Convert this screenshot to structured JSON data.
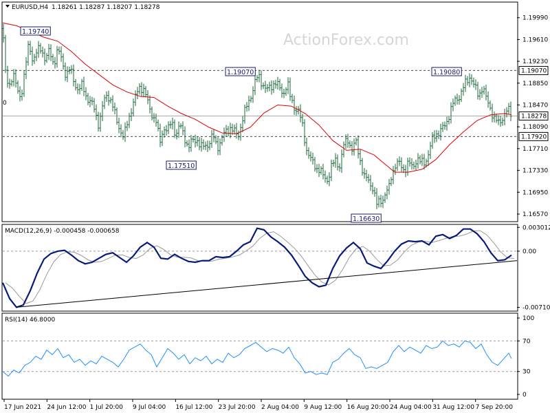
{
  "header": {
    "symbol": "EURUSD,H4",
    "ohlc": "1.18261 1.18287 1.18207 1.18278",
    "watermark": "ActionForex.com"
  },
  "chart_data": [
    {
      "type": "candlestick",
      "panel": "price",
      "ylim": [
        1.1645,
        1.2025
      ],
      "y_ticks": [
        "1.19990",
        "1.19610",
        "1.19230",
        "1.18850",
        "1.18470",
        "1.18090",
        "1.17710",
        "1.17330",
        "1.16950",
        "1.16570"
      ],
      "price_marker": {
        "label": "1.18278",
        "value": 1.18278
      },
      "levels": [
        {
          "label": "1.19070",
          "value": 1.1907,
          "style": "dashed"
        },
        {
          "label": "1.17920",
          "value": 1.1792,
          "style": "dashed"
        }
      ],
      "annotations": [
        {
          "label": "1.19740",
          "x": "24 Jun 2021",
          "value": 1.1974
        },
        {
          "label": "1.17510",
          "x": "16 Jul 2021",
          "value": 1.1751
        },
        {
          "label": "1.19070",
          "x": "30 Jul 2021",
          "value": 1.1907
        },
        {
          "label": "1.16630",
          "x": "20 Aug 2021",
          "value": 1.1663
        },
        {
          "label": "1.19080",
          "x": "2 Sep 2021",
          "value": 1.1908
        }
      ],
      "close_points": [
        [
          0,
          1.198
        ],
        [
          4,
          1.19
        ],
        [
          9,
          1.1882
        ],
        [
          15,
          1.1901
        ],
        [
          20,
          1.1875
        ],
        [
          26,
          1.1862
        ],
        [
          32,
          1.1902
        ],
        [
          38,
          1.1955
        ],
        [
          44,
          1.1925
        ],
        [
          50,
          1.1938
        ],
        [
          56,
          1.1948
        ],
        [
          62,
          1.1925
        ],
        [
          68,
          1.194
        ],
        [
          74,
          1.192
        ],
        [
          80,
          1.1942
        ],
        [
          86,
          1.1925
        ],
        [
          92,
          1.19
        ],
        [
          98,
          1.1908
        ],
        [
          104,
          1.1888
        ],
        [
          110,
          1.1872
        ],
        [
          116,
          1.188
        ],
        [
          122,
          1.1862
        ],
        [
          128,
          1.185
        ],
        [
          134,
          1.1838
        ],
        [
          140,
          1.1812
        ],
        [
          146,
          1.1848
        ],
        [
          152,
          1.1868
        ],
        [
          158,
          1.1852
        ],
        [
          164,
          1.1825
        ],
        [
          170,
          1.1808
        ],
        [
          176,
          1.1788
        ],
        [
          182,
          1.182
        ],
        [
          188,
          1.1845
        ],
        [
          194,
          1.1862
        ],
        [
          200,
          1.1882
        ],
        [
          206,
          1.1872
        ],
        [
          212,
          1.1845
        ],
        [
          218,
          1.183
        ],
        [
          224,
          1.1815
        ],
        [
          228,
          1.1778
        ],
        [
          234,
          1.181
        ],
        [
          240,
          1.18
        ],
        [
          246,
          1.182
        ],
        [
          252,
          1.1795
        ],
        [
          258,
          1.181
        ],
        [
          264,
          1.1795
        ],
        [
          270,
          1.177
        ],
        [
          276,
          1.1785
        ],
        [
          282,
          1.179
        ],
        [
          288,
          1.177
        ],
        [
          294,
          1.1778
        ],
        [
          300,
          1.178
        ],
        [
          306,
          1.1792
        ],
        [
          312,
          1.1775
        ],
        [
          318,
          1.1785
        ],
        [
          324,
          1.18
        ],
        [
          330,
          1.181
        ],
        [
          336,
          1.18
        ],
        [
          342,
          1.1792
        ],
        [
          348,
          1.182
        ],
        [
          354,
          1.184
        ],
        [
          360,
          1.1862
        ],
        [
          366,
          1.1882
        ],
        [
          372,
          1.1898
        ],
        [
          378,
          1.1885
        ],
        [
          384,
          1.187
        ],
        [
          390,
          1.188
        ],
        [
          396,
          1.1888
        ],
        [
          402,
          1.1875
        ],
        [
          408,
          1.1868
        ],
        [
          414,
          1.1885
        ],
        [
          418,
          1.186
        ],
        [
          424,
          1.1845
        ],
        [
          430,
          1.1835
        ],
        [
          436,
          1.181
        ],
        [
          442,
          1.177
        ],
        [
          448,
          1.175
        ],
        [
          454,
          1.1742
        ],
        [
          460,
          1.1735
        ],
        [
          466,
          1.1722
        ],
        [
          472,
          1.1718
        ],
        [
          478,
          1.1738
        ],
        [
          484,
          1.175
        ],
        [
          490,
          1.1742
        ],
        [
          496,
          1.1775
        ],
        [
          502,
          1.1788
        ],
        [
          508,
          1.177
        ],
        [
          514,
          1.178
        ],
        [
          520,
          1.1752
        ],
        [
          526,
          1.172
        ],
        [
          532,
          1.1715
        ],
        [
          538,
          1.1705
        ],
        [
          544,
          1.1672
        ],
        [
          550,
          1.1682
        ],
        [
          556,
          1.169
        ],
        [
          562,
          1.1702
        ],
        [
          566,
          1.173
        ],
        [
          572,
          1.1745
        ],
        [
          578,
          1.1742
        ],
        [
          584,
          1.1735
        ],
        [
          590,
          1.1745
        ],
        [
          596,
          1.1738
        ],
        [
          602,
          1.1755
        ],
        [
          608,
          1.1745
        ],
        [
          614,
          1.1748
        ],
        [
          620,
          1.1765
        ],
        [
          626,
          1.179
        ],
        [
          632,
          1.18
        ],
        [
          638,
          1.1802
        ],
        [
          644,
          1.1812
        ],
        [
          650,
          1.1835
        ],
        [
          656,
          1.185
        ],
        [
          662,
          1.186
        ],
        [
          668,
          1.1872
        ],
        [
          674,
          1.1885
        ],
        [
          680,
          1.19
        ],
        [
          686,
          1.1878
        ],
        [
          692,
          1.1862
        ],
        [
          698,
          1.1882
        ],
        [
          704,
          1.1852
        ],
        [
          710,
          1.184
        ],
        [
          716,
          1.1822
        ],
        [
          722,
          1.1812
        ],
        [
          728,
          1.183
        ],
        [
          734,
          1.1838
        ],
        [
          740,
          1.1828
        ]
      ],
      "ma_points": [
        [
          0,
          1.199
        ],
        [
          20,
          1.1985
        ],
        [
          40,
          1.1975
        ],
        [
          60,
          1.1965
        ],
        [
          80,
          1.1958
        ],
        [
          100,
          1.194
        ],
        [
          120,
          1.1918
        ],
        [
          140,
          1.19
        ],
        [
          160,
          1.1882
        ],
        [
          180,
          1.187
        ],
        [
          200,
          1.1862
        ],
        [
          220,
          1.186
        ],
        [
          240,
          1.1845
        ],
        [
          260,
          1.1832
        ],
        [
          280,
          1.1822
        ],
        [
          300,
          1.1808
        ],
        [
          320,
          1.1798
        ],
        [
          340,
          1.1797
        ],
        [
          360,
          1.1808
        ],
        [
          380,
          1.1833
        ],
        [
          400,
          1.1847
        ],
        [
          420,
          1.1845
        ],
        [
          440,
          1.1832
        ],
        [
          460,
          1.1812
        ],
        [
          480,
          1.1785
        ],
        [
          500,
          1.1768
        ],
        [
          520,
          1.177
        ],
        [
          540,
          1.176
        ],
        [
          560,
          1.174
        ],
        [
          570,
          1.173
        ],
        [
          590,
          1.173
        ],
        [
          610,
          1.1735
        ],
        [
          630,
          1.1752
        ],
        [
          650,
          1.1778
        ],
        [
          670,
          1.18
        ],
        [
          690,
          1.182
        ],
        [
          710,
          1.183
        ],
        [
          730,
          1.1832
        ],
        [
          740,
          1.183
        ]
      ]
    },
    {
      "type": "line",
      "panel": "macd",
      "title": "MACD(12,26,9) -0.000458 -0.000658",
      "ylim": [
        -0.0075,
        0.0033
      ],
      "y_ticks": [
        "0.003012",
        "0.00",
        "-0.007109"
      ],
      "macd_points": [
        [
          0,
          -0.004
        ],
        [
          10,
          -0.006
        ],
        [
          20,
          -0.0071
        ],
        [
          30,
          -0.0068
        ],
        [
          40,
          -0.005
        ],
        [
          50,
          -0.0028
        ],
        [
          60,
          -0.001
        ],
        [
          70,
          -0.0003
        ],
        [
          80,
          0.0
        ],
        [
          90,
          0.0001
        ],
        [
          100,
          -0.0005
        ],
        [
          110,
          -0.0012
        ],
        [
          120,
          -0.0016
        ],
        [
          130,
          -0.0014
        ],
        [
          140,
          -0.0009
        ],
        [
          150,
          -0.0004
        ],
        [
          160,
          -0.0002
        ],
        [
          170,
          -0.0008
        ],
        [
          180,
          -0.0014
        ],
        [
          190,
          -0.0006
        ],
        [
          200,
          0.0005
        ],
        [
          210,
          0.0011
        ],
        [
          220,
          0.0005
        ],
        [
          230,
          -0.0009
        ],
        [
          240,
          -0.001
        ],
        [
          250,
          -0.0004
        ],
        [
          260,
          -0.0009
        ],
        [
          270,
          -0.0013
        ],
        [
          280,
          -0.0014
        ],
        [
          290,
          -0.0012
        ],
        [
          300,
          -0.0012
        ],
        [
          310,
          -0.0007
        ],
        [
          320,
          -0.0008
        ],
        [
          330,
          -0.0007
        ],
        [
          340,
          0.0
        ],
        [
          350,
          0.0008
        ],
        [
          360,
          0.0012
        ],
        [
          370,
          0.0029
        ],
        [
          380,
          0.0027
        ],
        [
          390,
          0.0018
        ],
        [
          400,
          0.0012
        ],
        [
          410,
          0.0005
        ],
        [
          420,
          -0.0005
        ],
        [
          430,
          -0.0018
        ],
        [
          440,
          -0.0032
        ],
        [
          450,
          -0.004
        ],
        [
          460,
          -0.0045
        ],
        [
          470,
          -0.0043
        ],
        [
          480,
          -0.0022
        ],
        [
          490,
          -0.0006
        ],
        [
          500,
          0.0004
        ],
        [
          510,
          0.0011
        ],
        [
          520,
          0.0003
        ],
        [
          530,
          -0.0015
        ],
        [
          540,
          -0.0019
        ],
        [
          550,
          -0.0022
        ],
        [
          560,
          -0.0012
        ],
        [
          570,
          0.0
        ],
        [
          580,
          0.0009
        ],
        [
          590,
          0.0013
        ],
        [
          600,
          0.0012
        ],
        [
          610,
          0.0013
        ],
        [
          620,
          0.0008
        ],
        [
          630,
          0.0019
        ],
        [
          640,
          0.0021
        ],
        [
          650,
          0.0016
        ],
        [
          660,
          0.002
        ],
        [
          670,
          0.0028
        ],
        [
          680,
          0.0028
        ],
        [
          690,
          0.0022
        ],
        [
          700,
          0.0012
        ],
        [
          710,
          -0.0002
        ],
        [
          720,
          -0.0012
        ],
        [
          730,
          -0.0011
        ],
        [
          740,
          -0.0005
        ]
      ],
      "trendline": [
        [
          20,
          -0.0071
        ],
        [
          752,
          -0.0012
        ]
      ]
    },
    {
      "type": "line",
      "panel": "rsi",
      "title": "RSI(14) 46.8000",
      "ylim": [
        0,
        100
      ],
      "y_ticks": [
        "100",
        "70",
        "30",
        "0"
      ],
      "levels": [
        70,
        30
      ],
      "rsi_points": [
        [
          0,
          30
        ],
        [
          8,
          24
        ],
        [
          16,
          32
        ],
        [
          24,
          28
        ],
        [
          32,
          38
        ],
        [
          40,
          42
        ],
        [
          48,
          50
        ],
        [
          56,
          46
        ],
        [
          64,
          58
        ],
        [
          72,
          52
        ],
        [
          80,
          60
        ],
        [
          88,
          48
        ],
        [
          96,
          52
        ],
        [
          104,
          42
        ],
        [
          112,
          46
        ],
        [
          120,
          38
        ],
        [
          128,
          44
        ],
        [
          136,
          40
        ],
        [
          144,
          50
        ],
        [
          152,
          46
        ],
        [
          160,
          42
        ],
        [
          168,
          36
        ],
        [
          176,
          46
        ],
        [
          184,
          58
        ],
        [
          192,
          62
        ],
        [
          200,
          66
        ],
        [
          208,
          58
        ],
        [
          216,
          52
        ],
        [
          224,
          36
        ],
        [
          232,
          48
        ],
        [
          240,
          60
        ],
        [
          248,
          54
        ],
        [
          256,
          46
        ],
        [
          264,
          52
        ],
        [
          272,
          40
        ],
        [
          280,
          48
        ],
        [
          288,
          44
        ],
        [
          296,
          50
        ],
        [
          304,
          40
        ],
        [
          312,
          46
        ],
        [
          320,
          42
        ],
        [
          328,
          54
        ],
        [
          336,
          48
        ],
        [
          344,
          52
        ],
        [
          352,
          60
        ],
        [
          360,
          64
        ],
        [
          368,
          68
        ],
        [
          376,
          62
        ],
        [
          384,
          56
        ],
        [
          392,
          60
        ],
        [
          400,
          58
        ],
        [
          408,
          54
        ],
        [
          416,
          62
        ],
        [
          424,
          48
        ],
        [
          432,
          40
        ],
        [
          440,
          28
        ],
        [
          448,
          30
        ],
        [
          456,
          26
        ],
        [
          464,
          28
        ],
        [
          472,
          26
        ],
        [
          480,
          42
        ],
        [
          488,
          46
        ],
        [
          496,
          54
        ],
        [
          504,
          60
        ],
        [
          512,
          52
        ],
        [
          520,
          48
        ],
        [
          528,
          34
        ],
        [
          536,
          36
        ],
        [
          544,
          34
        ],
        [
          552,
          38
        ],
        [
          560,
          42
        ],
        [
          568,
          56
        ],
        [
          576,
          64
        ],
        [
          584,
          56
        ],
        [
          592,
          62
        ],
        [
          600,
          58
        ],
        [
          608,
          54
        ],
        [
          616,
          64
        ],
        [
          624,
          60
        ],
        [
          632,
          62
        ],
        [
          640,
          70
        ],
        [
          648,
          64
        ],
        [
          656,
          66
        ],
        [
          664,
          62
        ],
        [
          672,
          70
        ],
        [
          680,
          68
        ],
        [
          688,
          60
        ],
        [
          696,
          66
        ],
        [
          704,
          52
        ],
        [
          712,
          42
        ],
        [
          720,
          38
        ],
        [
          728,
          46
        ],
        [
          736,
          54
        ],
        [
          740,
          47
        ]
      ]
    }
  ],
  "x_axis": {
    "labels": [
      "17 Jun 2021",
      "24 Jun 12:00",
      "1 Jul 20:00",
      "9 Jul 04:00",
      "16 Jul 12:00",
      "23 Jul 20:00",
      "2 Aug 04:00",
      "9 Aug 12:00",
      "16 Aug 20:00",
      "24 Aug 04:00",
      "31 Aug 12:00",
      "7 Sep 20:00"
    ]
  }
}
